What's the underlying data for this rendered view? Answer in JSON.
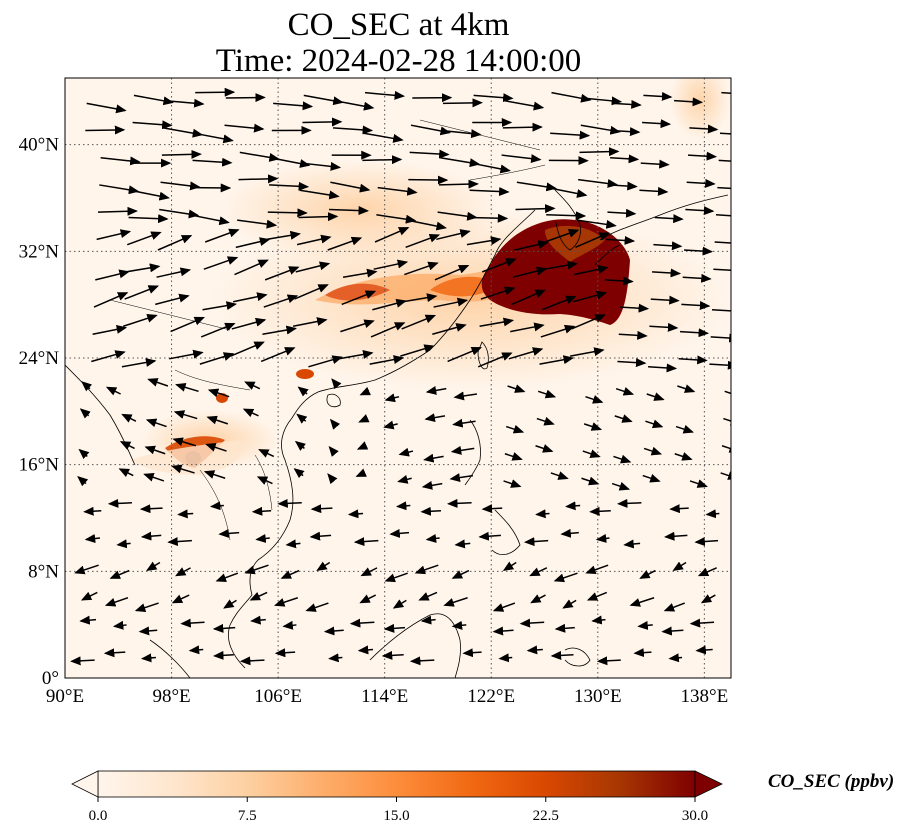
{
  "map": {
    "title_line1": "CO_SEC at 4km",
    "title_line2": "Time: 2024-02-28 14:00:00",
    "extent": {
      "lon": [
        90,
        140
      ],
      "lat": [
        0,
        45
      ]
    },
    "lon_ticks": [
      {
        "value": 90,
        "label": "90°E"
      },
      {
        "value": 98,
        "label": "98°E"
      },
      {
        "value": 106,
        "label": "106°E"
      },
      {
        "value": 114,
        "label": "114°E"
      },
      {
        "value": 122,
        "label": "122°E"
      },
      {
        "value": 130,
        "label": "130°E"
      },
      {
        "value": 138,
        "label": "138°E"
      }
    ],
    "lat_ticks": [
      {
        "value": 0,
        "label": "0°"
      },
      {
        "value": 8,
        "label": "8°N"
      },
      {
        "value": 16,
        "label": "16°N"
      },
      {
        "value": 24,
        "label": "24°N"
      },
      {
        "value": 32,
        "label": "32°N"
      },
      {
        "value": 40,
        "label": "40°N"
      }
    ],
    "gridlines": true,
    "background_color": "#fff5eb",
    "coastline_color": "#000000",
    "plume_colors": {
      "light": "#fdd0a2",
      "medium": "#f16913",
      "dark": "#7f0000"
    }
  },
  "colorbar": {
    "label": "CO_SEC (ppbv)",
    "ticks": [
      "0.0",
      "7.5",
      "15.0",
      "22.5",
      "30.0"
    ],
    "min": 0,
    "max": 30,
    "colors": [
      "#fff5eb",
      "#fee6ce",
      "#fdd0a2",
      "#fdae6b",
      "#fd8d3c",
      "#f16913",
      "#d94801",
      "#a63603",
      "#7f0000"
    ],
    "extend": "both"
  }
}
